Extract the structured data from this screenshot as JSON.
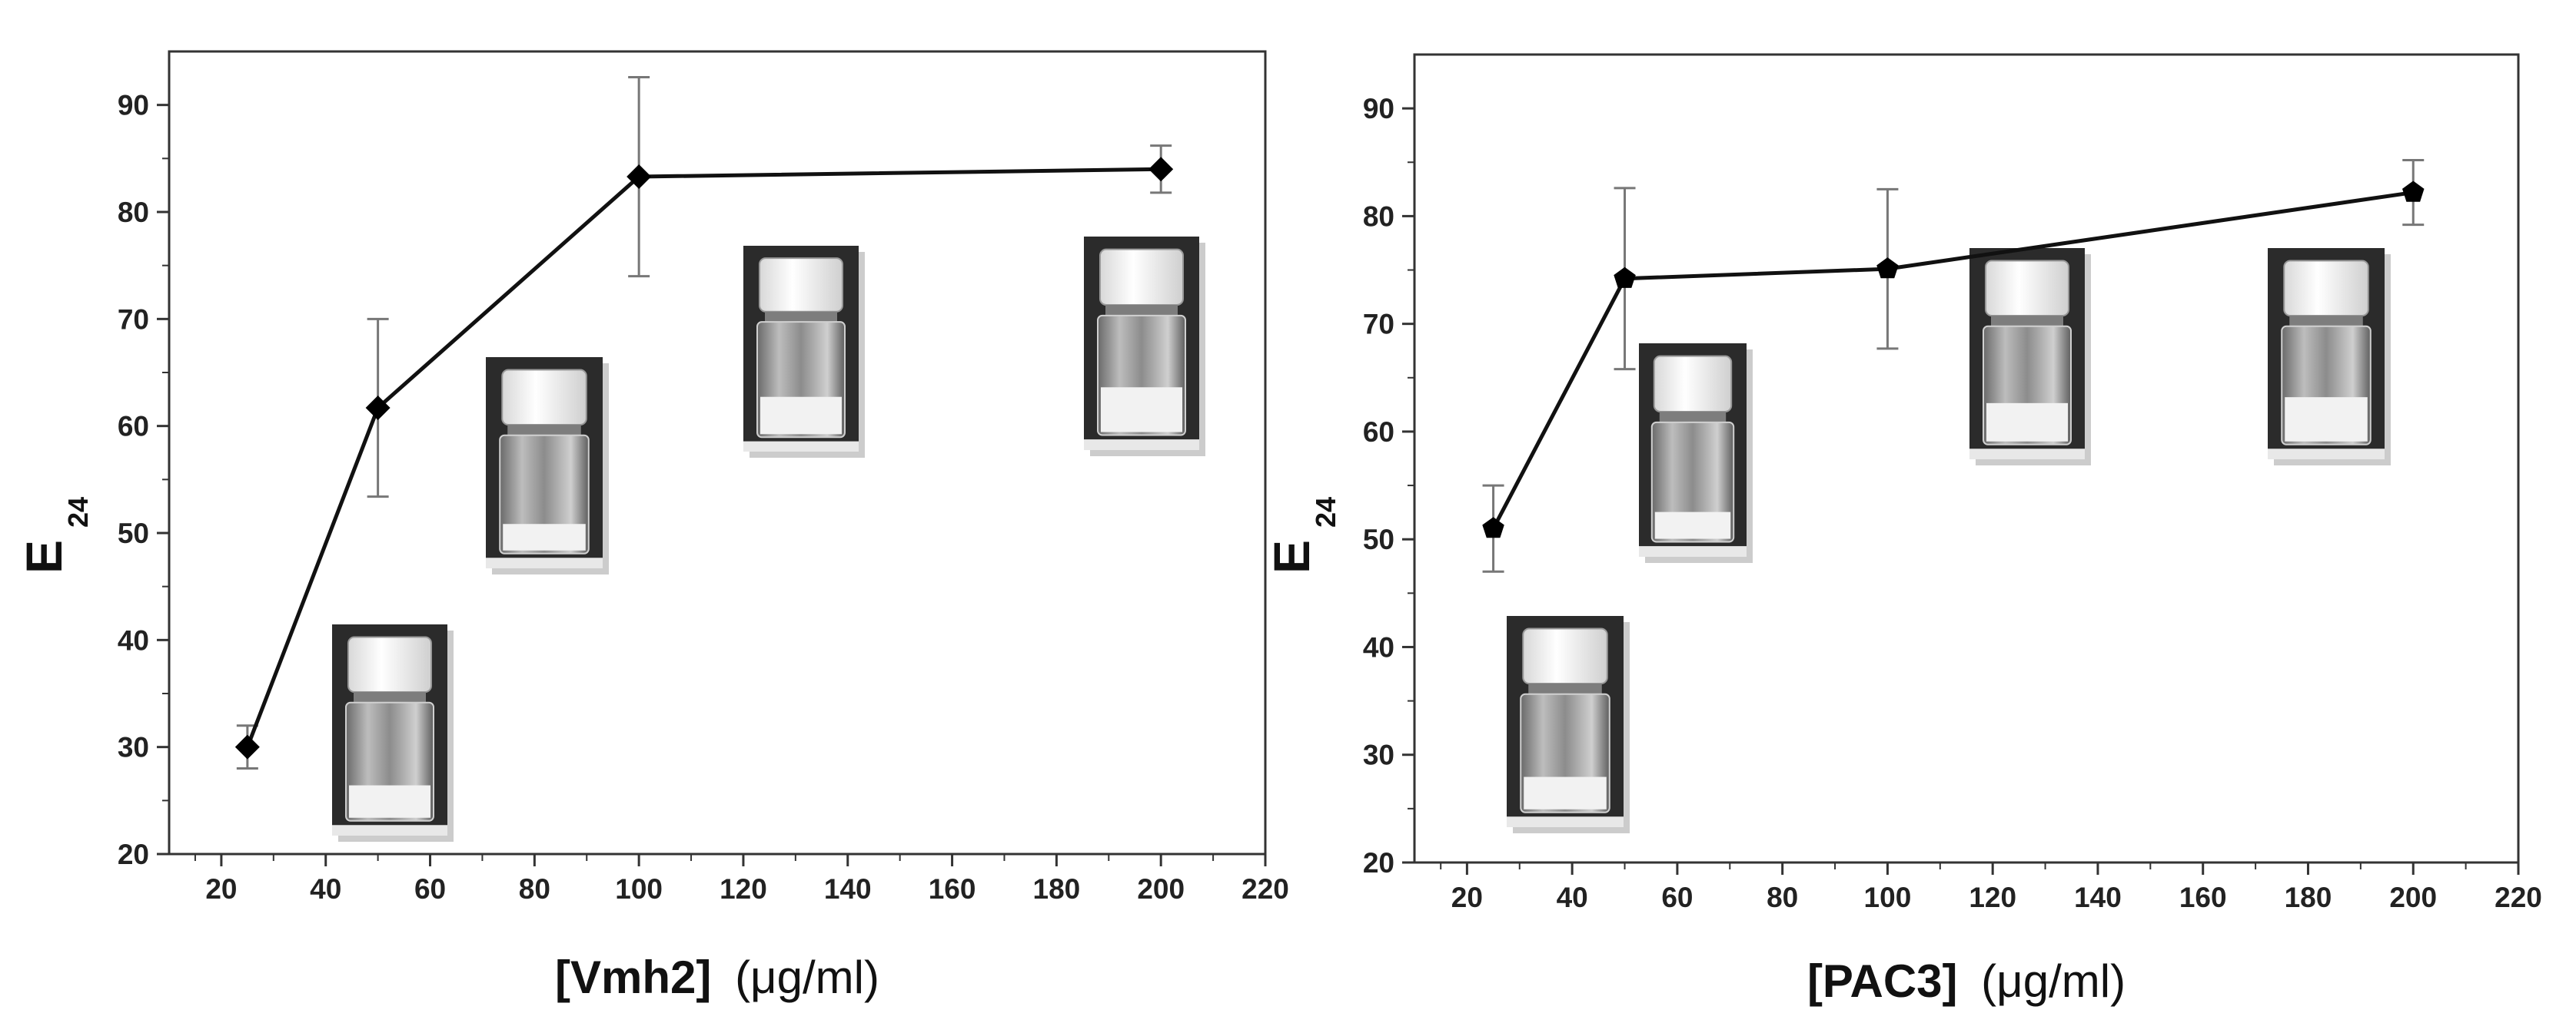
{
  "chart_data": [
    {
      "type": "line",
      "title": "",
      "xlabel": "[Vmh2]",
      "xlabel_unit": "(μg/ml)",
      "ylabel": "E",
      "ylabel_subscript": "24",
      "xlim": [
        10,
        220
      ],
      "ylim": [
        20,
        95
      ],
      "xticks": [
        20,
        40,
        60,
        80,
        100,
        120,
        140,
        160,
        180,
        200,
        220
      ],
      "yticks": [
        20,
        30,
        40,
        50,
        60,
        70,
        80,
        90
      ],
      "marker": "diamond",
      "grid": false,
      "series": [
        {
          "x": [
            25,
            50,
            100,
            200
          ],
          "y": [
            30,
            61.7,
            83.3,
            84
          ],
          "error": [
            2,
            8.3,
            9.3,
            2.2
          ]
        }
      ],
      "insets": [
        {
          "at_x": 25,
          "desc": "vial-photo"
        },
        {
          "at_x": 50,
          "desc": "vial-photo"
        },
        {
          "at_x": 100,
          "desc": "vial-photo"
        },
        {
          "at_x": 200,
          "desc": "vial-photo"
        }
      ]
    },
    {
      "type": "line",
      "title": "",
      "xlabel": "[PAC3]",
      "xlabel_unit": "(μg/ml)",
      "ylabel": "E",
      "ylabel_subscript": "24",
      "xlim": [
        10,
        220
      ],
      "ylim": [
        20,
        95
      ],
      "xticks": [
        20,
        40,
        60,
        80,
        100,
        120,
        140,
        160,
        180,
        200,
        220
      ],
      "yticks": [
        20,
        30,
        40,
        50,
        60,
        70,
        80,
        90
      ],
      "marker": "pentagon",
      "grid": false,
      "series": [
        {
          "x": [
            25,
            50,
            100,
            200
          ],
          "y": [
            51,
            74.2,
            75.1,
            82.2
          ],
          "error": [
            4,
            8.4,
            7.4,
            3
          ]
        }
      ],
      "insets": [
        {
          "at_x": 25,
          "desc": "vial-photo"
        },
        {
          "at_x": 50,
          "desc": "vial-photo"
        },
        {
          "at_x": 100,
          "desc": "vial-photo"
        },
        {
          "at_x": 200,
          "desc": "vial-photo"
        }
      ]
    }
  ]
}
